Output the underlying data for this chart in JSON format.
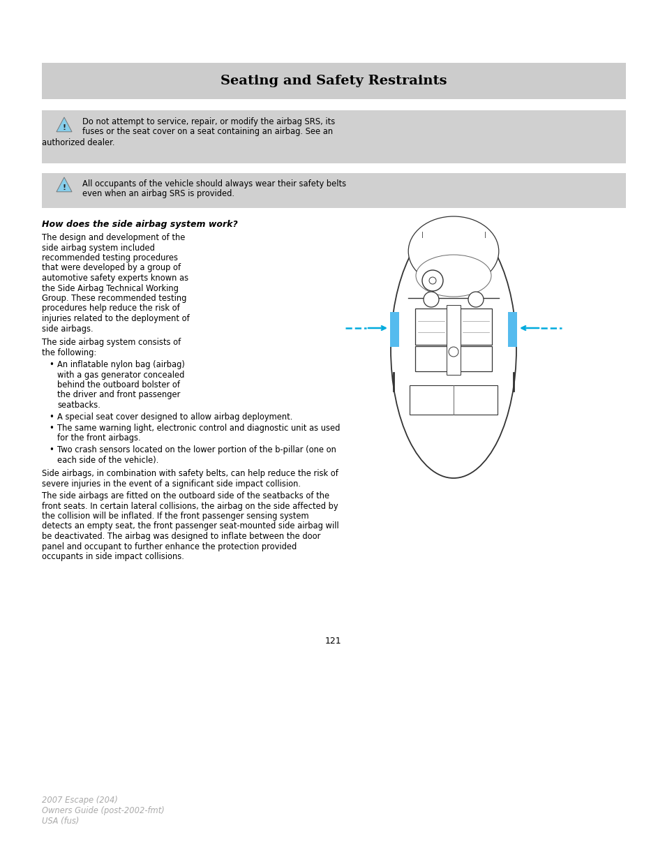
{
  "page_bg": "#ffffff",
  "header_bg": "#cccccc",
  "header_text": "Seating and Safety Restraints",
  "warning_bg": "#d0d0d0",
  "warn1_line1": "Do not attempt to service, repair, or modify the airbag SRS, its",
  "warn1_line2": "fuses or the seat cover on a seat containing an airbag. See an",
  "warn1_line3": "authorized dealer.",
  "warn2_line1": "All occupants of the vehicle should always wear their safety belts",
  "warn2_line2": "even when an airbag SRS is provided.",
  "section_title": "How does the side airbag system work?",
  "left_col_lines": [
    "The design and development of the",
    "side airbag system included",
    "recommended testing procedures",
    "that were developed by a group of",
    "automotive safety experts known as",
    "the Side Airbag Technical Working",
    "Group. These recommended testing",
    "procedures help reduce the risk of",
    "injuries related to the deployment of",
    "side airbags."
  ],
  "left_col_lines2": [
    "The side airbag system consists of",
    "the following:"
  ],
  "bullet1_lines": [
    "An inflatable nylon bag (airbag)",
    "with a gas generator concealed",
    "behind the outboard bolster of",
    "the driver and front passenger",
    "seatbacks."
  ],
  "bullet2": "A special seat cover designed to allow airbag deployment.",
  "bullet3_lines": [
    "The same warning light, electronic control and diagnostic unit as used",
    "for the front airbags."
  ],
  "bullet4_lines": [
    "Two crash sensors located on the lower portion of the b-pillar (one on",
    "each side of the vehicle)."
  ],
  "para1_lines": [
    "Side airbags, in combination with safety belts, can help reduce the risk of",
    "severe injuries in the event of a significant side impact collision."
  ],
  "para2_lines": [
    "The side airbags are fitted on the outboard side of the seatbacks of the",
    "front seats. In certain lateral collisions, the airbag on the side affected by",
    "the collision will be inflated. If the front passenger sensing system",
    "detects an empty seat, the front passenger seat-mounted side airbag will",
    "be deactivated. The airbag was designed to inflate between the door",
    "panel and occupant to further enhance the protection provided",
    "occupants in side impact collisions."
  ],
  "page_number": "121",
  "footer_line1": "2007 Escape (204)",
  "footer_line2": "Owners Guide (post-2002-fmt)",
  "footer_line3": "USA (fus)",
  "arrow_color": "#00aadd",
  "airbag_color": "#55bbee",
  "car_edge": "#333333",
  "gray_text": "#aaaaaa"
}
